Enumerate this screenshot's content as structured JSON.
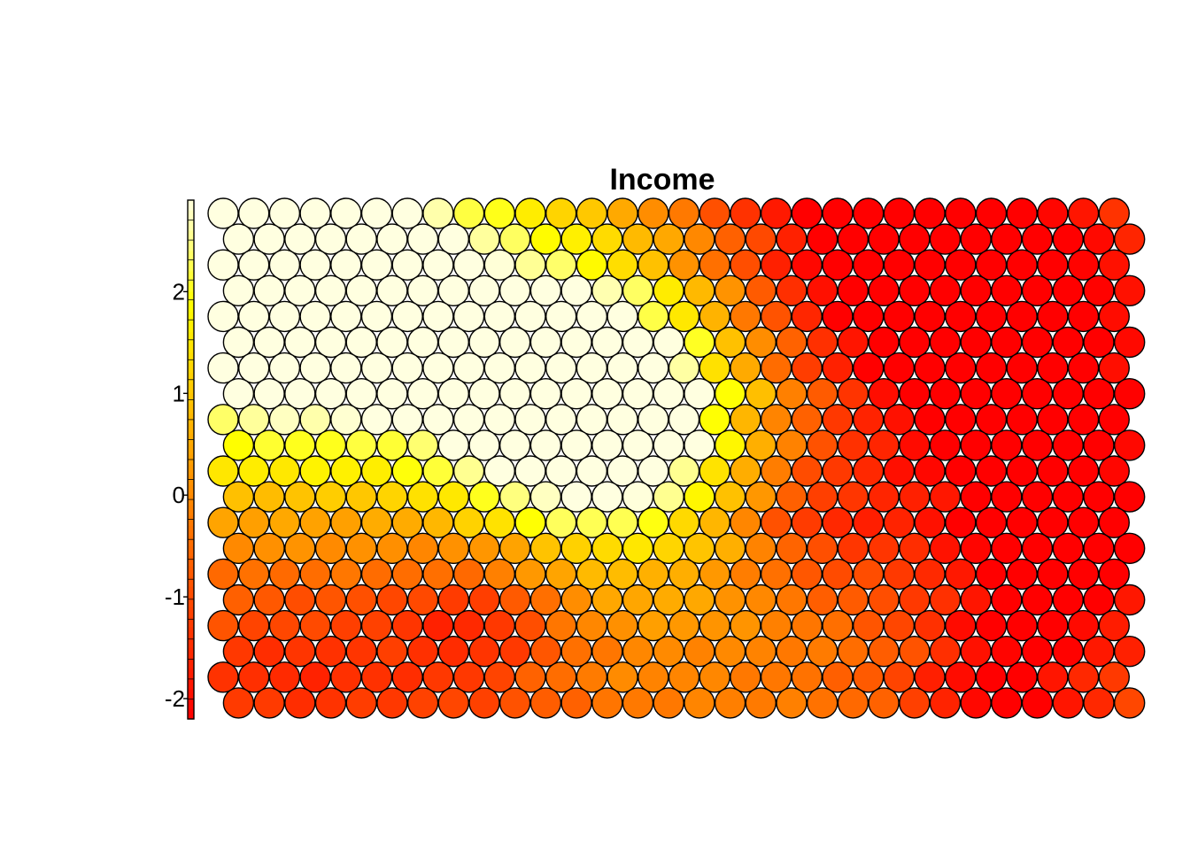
{
  "chart_data": {
    "type": "heatmap",
    "title": "Income",
    "layout": "hexagonal",
    "rows": 20,
    "cols": 30,
    "colormap": [
      "#ff0000",
      "#ff4000",
      "#ff8000",
      "#ffbf00",
      "#ffff00",
      "#ffffe0"
    ],
    "colorbar": {
      "range": [
        -2.2,
        2.9
      ],
      "ticks": [
        2,
        1,
        0,
        -1,
        -2
      ],
      "tick_labels": [
        "2",
        "1",
        "0",
        "-1",
        "-2"
      ],
      "placement": "left"
    },
    "hotspots": [
      {
        "row": 0,
        "col": 0,
        "value": 2.6,
        "width": 6
      },
      {
        "row": 4,
        "col": 2,
        "value": 2.0,
        "width": 5
      },
      {
        "row": 8,
        "col": 12,
        "value": 2.9,
        "width": 3
      },
      {
        "row": 6,
        "col": 11,
        "value": 1.8,
        "width": 4
      },
      {
        "row": 2,
        "col": 24,
        "value": -2.1,
        "width": 4
      },
      {
        "row": 8,
        "col": 26,
        "value": -2.1,
        "width": 4
      },
      {
        "row": 14,
        "col": 27,
        "value": -2.1,
        "width": 3
      },
      {
        "row": 12,
        "col": 19,
        "value": -1.6,
        "width": 2
      },
      {
        "row": 16,
        "col": 8,
        "value": -1.8,
        "width": 2
      },
      {
        "row": 18,
        "col": 2,
        "value": -1.6,
        "width": 3
      },
      {
        "row": 19,
        "col": 25,
        "value": -2.0,
        "width": 2
      },
      {
        "row": 0,
        "col": 21,
        "value": -1.9,
        "width": 4
      },
      {
        "row": 14,
        "col": 15,
        "value": 0.2,
        "width": 4
      }
    ],
    "background_value": -0.6
  }
}
